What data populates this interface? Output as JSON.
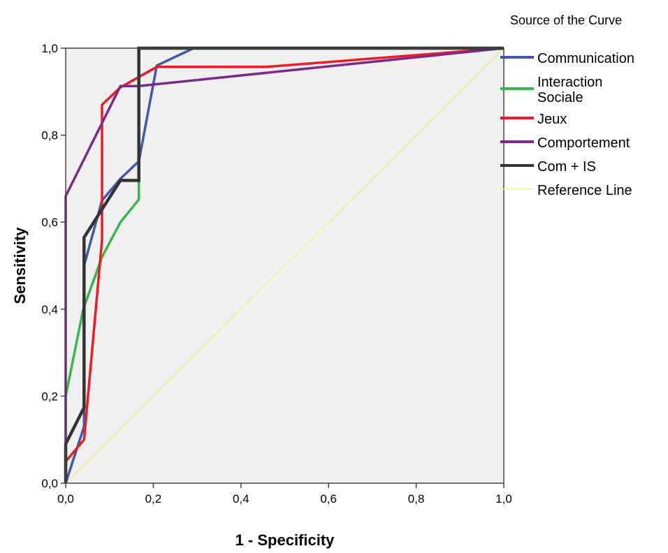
{
  "chart_data": {
    "type": "line",
    "xlabel": "1 - Specificity",
    "ylabel": "Sensitivity",
    "xlim": [
      0,
      1
    ],
    "ylim": [
      0,
      1
    ],
    "xticks": [
      0,
      0.2,
      0.4,
      0.6,
      0.8,
      1.0
    ],
    "yticks": [
      0,
      0.2,
      0.4,
      0.6,
      0.8,
      1.0
    ],
    "xtick_labels": [
      "0,0",
      "0,2",
      "0,4",
      "0,6",
      "0,8",
      "1,0"
    ],
    "ytick_labels": [
      "0,0",
      "0,2",
      "0,4",
      "0,6",
      "0,8",
      "1,0"
    ],
    "grid": false,
    "plot_background": "#f0f0f0",
    "legend": {
      "title": "Source of the Curve",
      "placement": "right",
      "entries": [
        {
          "label_lines": [
            "Communication"
          ],
          "color": "#3e58ac"
        },
        {
          "label_lines": [
            "Interaction",
            "Sociale"
          ],
          "color": "#39b54a"
        },
        {
          "label_lines": [
            "Jeux"
          ],
          "color": "#ed1c24"
        },
        {
          "label_lines": [
            "Comportement"
          ],
          "color": "#7b2a8c"
        },
        {
          "label_lines": [
            "Com + IS"
          ],
          "color": "#333333"
        },
        {
          "label_lines": [
            "Reference Line"
          ],
          "color": "#f5ee84"
        }
      ]
    },
    "series": [
      {
        "name": "Reference Line",
        "color": "#f5ee84",
        "width": 1.5,
        "points": [
          [
            0,
            0
          ],
          [
            1,
            1
          ]
        ]
      },
      {
        "name": "Interaction Sociale",
        "color": "#39b54a",
        "width": 3.5,
        "points": [
          [
            0,
            0
          ],
          [
            0,
            0.2
          ],
          [
            0.04,
            0.4
          ],
          [
            0.083,
            0.52
          ],
          [
            0.125,
            0.6
          ],
          [
            0.167,
            0.652
          ],
          [
            0.167,
            1.0
          ],
          [
            1,
            1
          ]
        ]
      },
      {
        "name": "Communication",
        "color": "#3e58ac",
        "width": 3.5,
        "points": [
          [
            0,
            0
          ],
          [
            0.042,
            0.13
          ],
          [
            0.042,
            0.5
          ],
          [
            0.083,
            0.65
          ],
          [
            0.125,
            0.7
          ],
          [
            0.167,
            0.74
          ],
          [
            0.208,
            0.96
          ],
          [
            0.292,
            1.0
          ],
          [
            1,
            1
          ]
        ]
      },
      {
        "name": "Jeux",
        "color": "#ed1c24",
        "width": 3.5,
        "points": [
          [
            0,
            0
          ],
          [
            0,
            0.05
          ],
          [
            0.042,
            0.1
          ],
          [
            0.083,
            0.56
          ],
          [
            0.083,
            0.87
          ],
          [
            0.125,
            0.91
          ],
          [
            0.208,
            0.957
          ],
          [
            0.458,
            0.957
          ],
          [
            1,
            1
          ]
        ]
      },
      {
        "name": "Comportement",
        "color": "#7b2a8c",
        "width": 3.5,
        "points": [
          [
            0,
            0
          ],
          [
            0,
            0.66
          ],
          [
            0.125,
            0.913
          ],
          [
            0.167,
            0.913
          ],
          [
            1,
            1
          ]
        ]
      },
      {
        "name": "Com + IS",
        "color": "#333333",
        "width": 4.5,
        "points": [
          [
            0,
            0
          ],
          [
            0,
            0.09
          ],
          [
            0.042,
            0.174
          ],
          [
            0.042,
            0.565
          ],
          [
            0.125,
            0.696
          ],
          [
            0.167,
            0.696
          ],
          [
            0.167,
            1.0
          ],
          [
            1,
            1
          ]
        ]
      }
    ]
  }
}
